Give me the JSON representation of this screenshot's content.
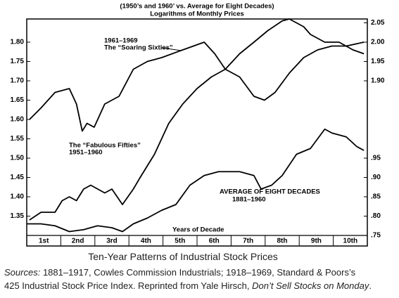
{
  "chart_data": {
    "type": "line",
    "title": "(1950’s and 1960’ vs. Average for Eight Decades)",
    "subtitle": "Logarithms of Monthly Prices",
    "x_label": "Years of Decade",
    "categories": [
      "1st",
      "2nd",
      "3rd",
      "4th",
      "5th",
      "6th",
      "7th",
      "8th",
      "9th",
      "10th"
    ],
    "xlim": [
      0,
      10
    ],
    "ylim": [
      1.3,
      1.86
    ],
    "yticks": [
      1.35,
      {
        "value": 1.4,
        "label": "1.40"
      },
      1.45,
      {
        "value": 1.5,
        "label": "1.50"
      },
      1.55,
      {
        "value": 1.6,
        "label": "1.60"
      },
      1.65,
      {
        "value": 1.7,
        "label": "1.70"
      },
      1.75,
      {
        "value": 1.8,
        "label": "1.80"
      }
    ],
    "y2lim": [
      1.5,
      2.06
    ],
    "y2ticks": [
      {
        "value": 1.9,
        "label": "1.90"
      },
      1.95,
      {
        "value": 2.0,
        "label": "2.00"
      },
      2.05
    ],
    "y3lim": [
      0.75,
      1.31
    ],
    "y3ticks": [
      {
        "value": 0.75,
        "label": ".75"
      },
      {
        "value": 0.8,
        "label": ".80"
      },
      {
        "value": 0.85,
        "label": ".85"
      },
      {
        "value": 0.9,
        "label": ".90"
      },
      {
        "value": 0.95,
        "label": ".95"
      }
    ],
    "series": [
      {
        "name": "1961–1969",
        "color": "#000000",
        "axis": "y2",
        "x": [
          0.08,
          0.42,
          0.83,
          1.25,
          1.46,
          1.63,
          1.77,
          1.98,
          2.29,
          2.71,
          3.13,
          3.54,
          3.96,
          4.58,
          5.21,
          5.52,
          5.83,
          6.25,
          6.67,
          7.08,
          7.5,
          7.71,
          8.13,
          8.33,
          8.75,
          9.17,
          9.58,
          9.9
        ],
        "values": [
          1.8,
          1.83,
          1.87,
          1.88,
          1.84,
          1.77,
          1.79,
          1.78,
          1.84,
          1.86,
          1.93,
          1.95,
          1.96,
          1.98,
          2.0,
          1.97,
          1.93,
          1.97,
          2.0,
          2.03,
          2.055,
          2.06,
          2.04,
          2.02,
          2.0,
          2.0,
          1.98,
          1.97
        ]
      },
      {
        "name": "1951–1960",
        "color": "#000000",
        "axis": "y",
        "x": [
          0.08,
          0.42,
          0.83,
          1.04,
          1.25,
          1.46,
          1.67,
          1.88,
          2.29,
          2.5,
          2.81,
          3.13,
          3.33,
          3.75,
          4.17,
          4.58,
          5.0,
          5.42,
          5.83,
          6.25,
          6.67,
          6.98,
          7.29,
          7.71,
          8.13,
          8.54,
          8.96,
          9.38,
          9.9
        ],
        "values": [
          1.34,
          1.36,
          1.36,
          1.39,
          1.4,
          1.39,
          1.42,
          1.43,
          1.41,
          1.42,
          1.38,
          1.42,
          1.45,
          1.51,
          1.59,
          1.64,
          1.68,
          1.71,
          1.73,
          1.71,
          1.66,
          1.65,
          1.67,
          1.72,
          1.76,
          1.78,
          1.79,
          1.79,
          1.8
        ]
      },
      {
        "name": "1881–1960",
        "color": "#000000",
        "axis": "y3",
        "x": [
          0,
          0.42,
          0.83,
          1.25,
          1.67,
          2.08,
          2.5,
          2.81,
          3.13,
          3.54,
          3.96,
          4.38,
          4.79,
          5.21,
          5.63,
          6.25,
          6.67,
          6.88,
          7.19,
          7.5,
          7.92,
          8.33,
          8.75,
          8.96,
          9.38,
          9.69,
          9.9
        ],
        "values": [
          0.78,
          0.78,
          0.775,
          0.76,
          0.765,
          0.775,
          0.77,
          0.76,
          0.78,
          0.795,
          0.815,
          0.83,
          0.88,
          0.905,
          0.915,
          0.915,
          0.905,
          0.87,
          0.88,
          0.905,
          0.96,
          0.975,
          1.025,
          1.015,
          1.005,
          0.98,
          0.97
        ]
      }
    ],
    "annotations": {
      "sixties_years": "1961–1969",
      "sixties": "The “Soaring Sixties”",
      "fifties": "The “Fabulous Fifties”",
      "fifties_years": "1951–1960",
      "average": "AVERAGE OF EIGHT DECADES",
      "average_years": "1881–1960"
    }
  },
  "caption": "Ten-Year Patterns of Industrial Stock Prices",
  "sources": {
    "label": "Sources:",
    "line1": "1881–1917, Cowles Commission Industrials; 1918–1969, Standard & Poors’s",
    "line2": "425 Industrial Stock Price Index. Reprinted from Yale Hirsch,",
    "book": "Don’t Sell Stocks on Monday",
    "end": "."
  }
}
